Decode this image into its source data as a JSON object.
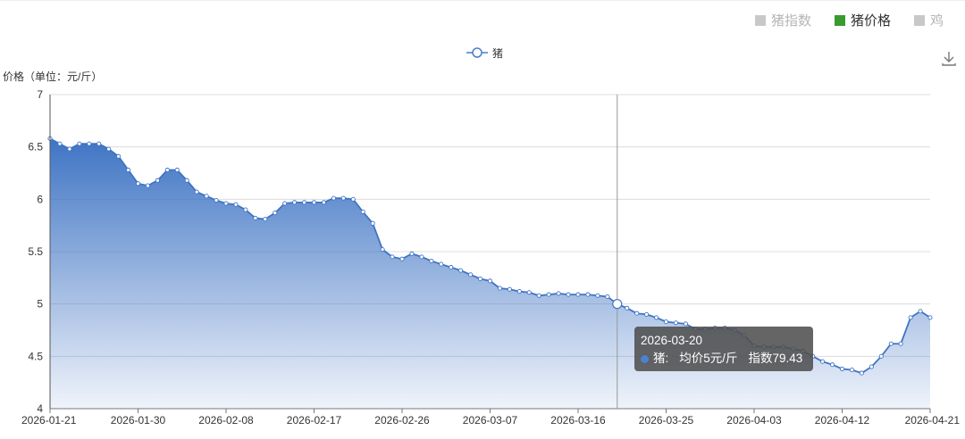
{
  "tabs": [
    {
      "label": "猪指数",
      "active": false
    },
    {
      "label": "猪价格",
      "active": true
    },
    {
      "label": "鸡",
      "active": false
    }
  ],
  "colors": {
    "series": "#4a7fc9",
    "active_tab": "#3a9a2e",
    "inactive_tab": "#c8c8c8"
  },
  "tooltip": {
    "date": "2026-03-20",
    "series_name": "猪:",
    "avg_price": "均价5元/斤",
    "index": "指数79.43"
  },
  "chart_data": {
    "type": "area",
    "ylabel": "价格（单位：元/斤）",
    "legend": [
      "猪"
    ],
    "ylim": [
      4,
      7
    ],
    "y_ticks": [
      "4",
      "4.5",
      "5",
      "5.5",
      "6",
      "6.5",
      "7"
    ],
    "x_tick_labels": [
      "2026-01-21",
      "2026-01-30",
      "2026-02-08",
      "2026-02-17",
      "2026-02-26",
      "2026-03-07",
      "2026-03-16",
      "2026-03-25",
      "2026-04-03",
      "2026-04-12",
      "2026-04-21"
    ],
    "grid": true,
    "highlight_date": "2026-03-20",
    "series": [
      {
        "name": "猪",
        "x": [
          "2026-01-21",
          "2026-01-22",
          "2026-01-23",
          "2026-01-24",
          "2026-01-25",
          "2026-01-26",
          "2026-01-27",
          "2026-01-28",
          "2026-01-29",
          "2026-01-30",
          "2026-01-31",
          "2026-02-01",
          "2026-02-02",
          "2026-02-03",
          "2026-02-04",
          "2026-02-05",
          "2026-02-06",
          "2026-02-07",
          "2026-02-08",
          "2026-02-09",
          "2026-02-10",
          "2026-02-11",
          "2026-02-12",
          "2026-02-13",
          "2026-02-14",
          "2026-02-15",
          "2026-02-16",
          "2026-02-17",
          "2026-02-18",
          "2026-02-19",
          "2026-02-20",
          "2026-02-21",
          "2026-02-22",
          "2026-02-23",
          "2026-02-24",
          "2026-02-25",
          "2026-02-26",
          "2026-02-27",
          "2026-02-28",
          "2026-03-01",
          "2026-03-02",
          "2026-03-03",
          "2026-03-04",
          "2026-03-05",
          "2026-03-06",
          "2026-03-07",
          "2026-03-08",
          "2026-03-09",
          "2026-03-10",
          "2026-03-11",
          "2026-03-12",
          "2026-03-13",
          "2026-03-14",
          "2026-03-15",
          "2026-03-16",
          "2026-03-17",
          "2026-03-18",
          "2026-03-19",
          "2026-03-20",
          "2026-03-21",
          "2026-03-22",
          "2026-03-23",
          "2026-03-24",
          "2026-03-25",
          "2026-03-26",
          "2026-03-27",
          "2026-03-28",
          "2026-03-29",
          "2026-03-30",
          "2026-03-31",
          "2026-04-01",
          "2026-04-02",
          "2026-04-03",
          "2026-04-04",
          "2026-04-05",
          "2026-04-06",
          "2026-04-07",
          "2026-04-08",
          "2026-04-09",
          "2026-04-10",
          "2026-04-11",
          "2026-04-12",
          "2026-04-13",
          "2026-04-14",
          "2026-04-15",
          "2026-04-16",
          "2026-04-17",
          "2026-04-18",
          "2026-04-19",
          "2026-04-20",
          "2026-04-21"
        ],
        "values": [
          6.58,
          6.53,
          6.48,
          6.53,
          6.53,
          6.53,
          6.48,
          6.41,
          6.28,
          6.15,
          6.13,
          6.18,
          6.28,
          6.28,
          6.18,
          6.07,
          6.03,
          5.99,
          5.96,
          5.95,
          5.9,
          5.82,
          5.81,
          5.87,
          5.96,
          5.97,
          5.97,
          5.97,
          5.97,
          6.01,
          6.01,
          6.0,
          5.88,
          5.77,
          5.52,
          5.45,
          5.43,
          5.48,
          5.45,
          5.41,
          5.38,
          5.35,
          5.32,
          5.28,
          5.24,
          5.22,
          5.15,
          5.14,
          5.12,
          5.11,
          5.08,
          5.09,
          5.1,
          5.09,
          5.09,
          5.09,
          5.08,
          5.07,
          5.0,
          4.96,
          4.91,
          4.9,
          4.87,
          4.83,
          4.82,
          4.81,
          4.76,
          4.76,
          4.77,
          4.77,
          4.75,
          4.7,
          4.6,
          4.59,
          4.59,
          4.59,
          4.57,
          4.55,
          4.5,
          4.45,
          4.42,
          4.38,
          4.37,
          4.34,
          4.4,
          4.5,
          4.62,
          4.62,
          4.87,
          4.93,
          4.87
        ]
      }
    ]
  }
}
